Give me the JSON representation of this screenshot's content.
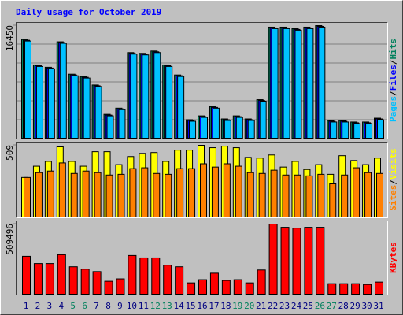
{
  "title": "Daily usage for October 2019",
  "legend_separator": "/",
  "chart_data": [
    {
      "type": "bar",
      "series": [
        {
          "name": "Hits",
          "color": "#00805c",
          "values": [
            14434,
            10743,
            10407,
            14100,
            9400,
            9064,
            7833,
            3581,
            4476,
            12533,
            12421,
            12757,
            10743,
            9288,
            2798,
            3357,
            4700,
            2910,
            3357,
            2910,
            5707,
            16226,
            16226,
            16002,
            16226,
            16450,
            2686,
            2686,
            2462,
            2462,
            3022
          ]
        },
        {
          "name": "Files",
          "color": "#0000ff",
          "values": [
            14322,
            10631,
            10295,
            13988,
            9288,
            8952,
            7721,
            3469,
            4364,
            12421,
            12309,
            12645,
            10631,
            9176,
            2686,
            3245,
            4588,
            2798,
            3245,
            2798,
            5595,
            16114,
            16114,
            15890,
            16114,
            16338,
            2574,
            2574,
            2350,
            2350,
            2910
          ]
        },
        {
          "name": "Pages",
          "color": "#00c0ff",
          "values": [
            14210,
            10519,
            10183,
            13876,
            9176,
            8840,
            7609,
            3357,
            4252,
            12309,
            12197,
            12533,
            10519,
            9064,
            2574,
            3133,
            4476,
            2686,
            3133,
            2686,
            5483,
            16002,
            16002,
            15778,
            16002,
            16226,
            2462,
            2462,
            2238,
            2238,
            2798
          ]
        }
      ],
      "ylim": [
        0,
        16450
      ],
      "yticks": [
        16450
      ]
    },
    {
      "type": "bar",
      "series": [
        {
          "name": "Visits",
          "color": "#ffff00",
          "values": [
            283,
            362,
            396,
            498,
            396,
            362,
            464,
            464,
            373,
            430,
            452,
            458,
            396,
            475,
            475,
            509,
            492,
            503,
            492,
            424,
            419,
            441,
            356,
            396,
            339,
            373,
            305,
            436,
            402,
            373,
            419
          ]
        },
        {
          "name": "Sites",
          "color": "#ff8000",
          "values": [
            283,
            317,
            328,
            385,
            311,
            328,
            317,
            300,
            305,
            345,
            351,
            311,
            305,
            345,
            345,
            379,
            356,
            379,
            362,
            317,
            311,
            334,
            300,
            300,
            294,
            305,
            238,
            300,
            351,
            317,
            311
          ]
        }
      ],
      "ylim": [
        0,
        509
      ],
      "yticks": [
        509
      ]
    },
    {
      "type": "bar",
      "categories": [
        "1",
        "2",
        "3",
        "4",
        "5",
        "6",
        "7",
        "8",
        "9",
        "10",
        "11",
        "12",
        "13",
        "14",
        "15",
        "16",
        "17",
        "18",
        "19",
        "20",
        "21",
        "22",
        "23",
        "24",
        "25",
        "26",
        "27",
        "28",
        "29",
        "30",
        "31"
      ],
      "category_colors": [
        "#000080",
        "#000080",
        "#000080",
        "#000080",
        "#00805c",
        "#00805c",
        "#000080",
        "#000080",
        "#000080",
        "#000080",
        "#000080",
        "#00805c",
        "#00805c",
        "#000080",
        "#000080",
        "#000080",
        "#000080",
        "#000080",
        "#00805c",
        "#00805c",
        "#000080",
        "#000080",
        "#000080",
        "#000080",
        "#000080",
        "#00805c",
        "#00805c",
        "#000080",
        "#000080",
        "#000080",
        "#000080"
      ],
      "series": [
        {
          "name": "KBytes",
          "color": "#ff0000",
          "values": [
            277920,
            225810,
            225810,
            289500,
            202650,
            185280,
            167910,
            98430,
            115800,
            283710,
            266340,
            266340,
            214230,
            202650,
            86850,
            110010,
            156330,
            104220,
            110010,
            86850,
            179490,
            509496,
            486360,
            480570,
            486360,
            486360,
            81060,
            81060,
            81060,
            75270,
            92640
          ]
        }
      ],
      "ylim": [
        0,
        509496
      ],
      "yticks": [
        509496
      ]
    }
  ]
}
